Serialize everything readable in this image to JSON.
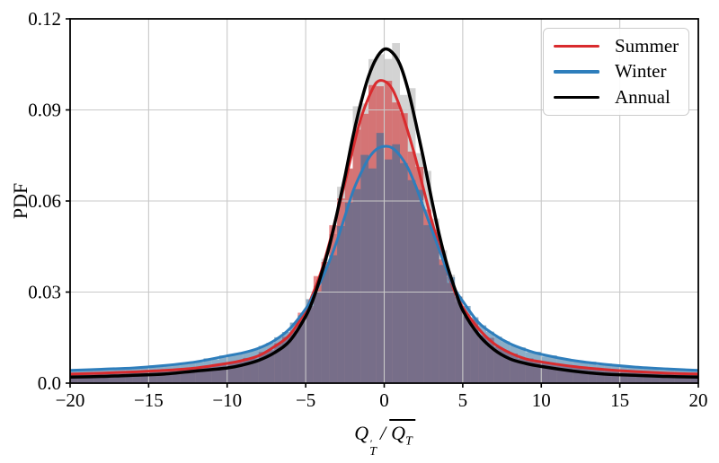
{
  "chart_data": {
    "type": "line",
    "overlay": "histogram",
    "title": "",
    "ylabel": "PDF",
    "xlabel": {
      "plain": "Q'_T / Q̄_T",
      "numerator": "Q",
      "prime": "′",
      "numerator_sub": "T",
      "divider": "/",
      "denominator": "Q",
      "denominator_sub": "T"
    },
    "xlim": [
      -20,
      20
    ],
    "ylim": [
      0,
      0.12
    ],
    "xticks": {
      "values": [
        -20,
        -15,
        -10,
        -5,
        0,
        5,
        10,
        15,
        20
      ],
      "labels": [
        "−20",
        "−15",
        "−10",
        "−5",
        "0",
        "5",
        "10",
        "15",
        "20"
      ]
    },
    "yticks": {
      "values": [
        0,
        0.03,
        0.06,
        0.09,
        0.12
      ],
      "labels": [
        "0.0",
        "0.03",
        "0.06",
        "0.09",
        "0.12"
      ]
    },
    "grid": true,
    "grid_color": "#c8c8c8",
    "axis_color": "#000000",
    "legend": {
      "position": "upper right"
    },
    "histogram": {
      "bin_width": 0.5
    },
    "x": [
      -20,
      -18,
      -16,
      -14,
      -12,
      -10,
      -9,
      -8,
      -7,
      -6,
      -5,
      -4.5,
      -4,
      -3.5,
      -3,
      -2.5,
      -2,
      -1.5,
      -1,
      -0.5,
      0,
      0.5,
      1,
      1.5,
      2,
      2.5,
      3,
      3.5,
      4,
      4.5,
      5,
      6,
      7,
      8,
      9,
      10,
      12,
      14,
      16,
      18,
      20
    ],
    "series": [
      {
        "name": "Summer",
        "color": "#d92b2e",
        "fill": "rgba(214,39,40,0.55)",
        "line_width": 3,
        "y": [
          0.003,
          0.0033,
          0.0037,
          0.0042,
          0.005,
          0.0065,
          0.0075,
          0.009,
          0.012,
          0.016,
          0.024,
          0.03,
          0.037,
          0.046,
          0.056,
          0.066,
          0.077,
          0.087,
          0.094,
          0.099,
          0.0995,
          0.097,
          0.091,
          0.083,
          0.074,
          0.064,
          0.054,
          0.045,
          0.037,
          0.03,
          0.025,
          0.018,
          0.013,
          0.01,
          0.008,
          0.007,
          0.0055,
          0.0045,
          0.0038,
          0.0033,
          0.003
        ]
      },
      {
        "name": "Winter",
        "color": "#2e7ebc",
        "fill": "rgba(41,105,153,0.55)",
        "line_width": 3,
        "y": [
          0.0042,
          0.0046,
          0.005,
          0.0058,
          0.007,
          0.009,
          0.01,
          0.0115,
          0.014,
          0.018,
          0.0245,
          0.029,
          0.034,
          0.04,
          0.047,
          0.055,
          0.063,
          0.069,
          0.074,
          0.077,
          0.078,
          0.0775,
          0.075,
          0.071,
          0.065,
          0.058,
          0.051,
          0.044,
          0.037,
          0.031,
          0.027,
          0.02,
          0.016,
          0.013,
          0.011,
          0.0095,
          0.0075,
          0.0062,
          0.0053,
          0.0047,
          0.0042
        ]
      },
      {
        "name": "Annual",
        "color": "#000000",
        "fill": "rgba(128,128,128,0.35)",
        "line_width": 3.5,
        "y": [
          0.002,
          0.0022,
          0.0026,
          0.003,
          0.004,
          0.005,
          0.006,
          0.0075,
          0.01,
          0.014,
          0.022,
          0.028,
          0.036,
          0.045,
          0.056,
          0.068,
          0.081,
          0.092,
          0.101,
          0.107,
          0.11,
          0.109,
          0.105,
          0.097,
          0.086,
          0.074,
          0.061,
          0.049,
          0.039,
          0.031,
          0.024,
          0.016,
          0.011,
          0.008,
          0.0065,
          0.0055,
          0.004,
          0.003,
          0.0026,
          0.0022,
          0.002
        ]
      }
    ],
    "histogram_draw_order": [
      "Annual",
      "Summer",
      "Winter"
    ]
  }
}
